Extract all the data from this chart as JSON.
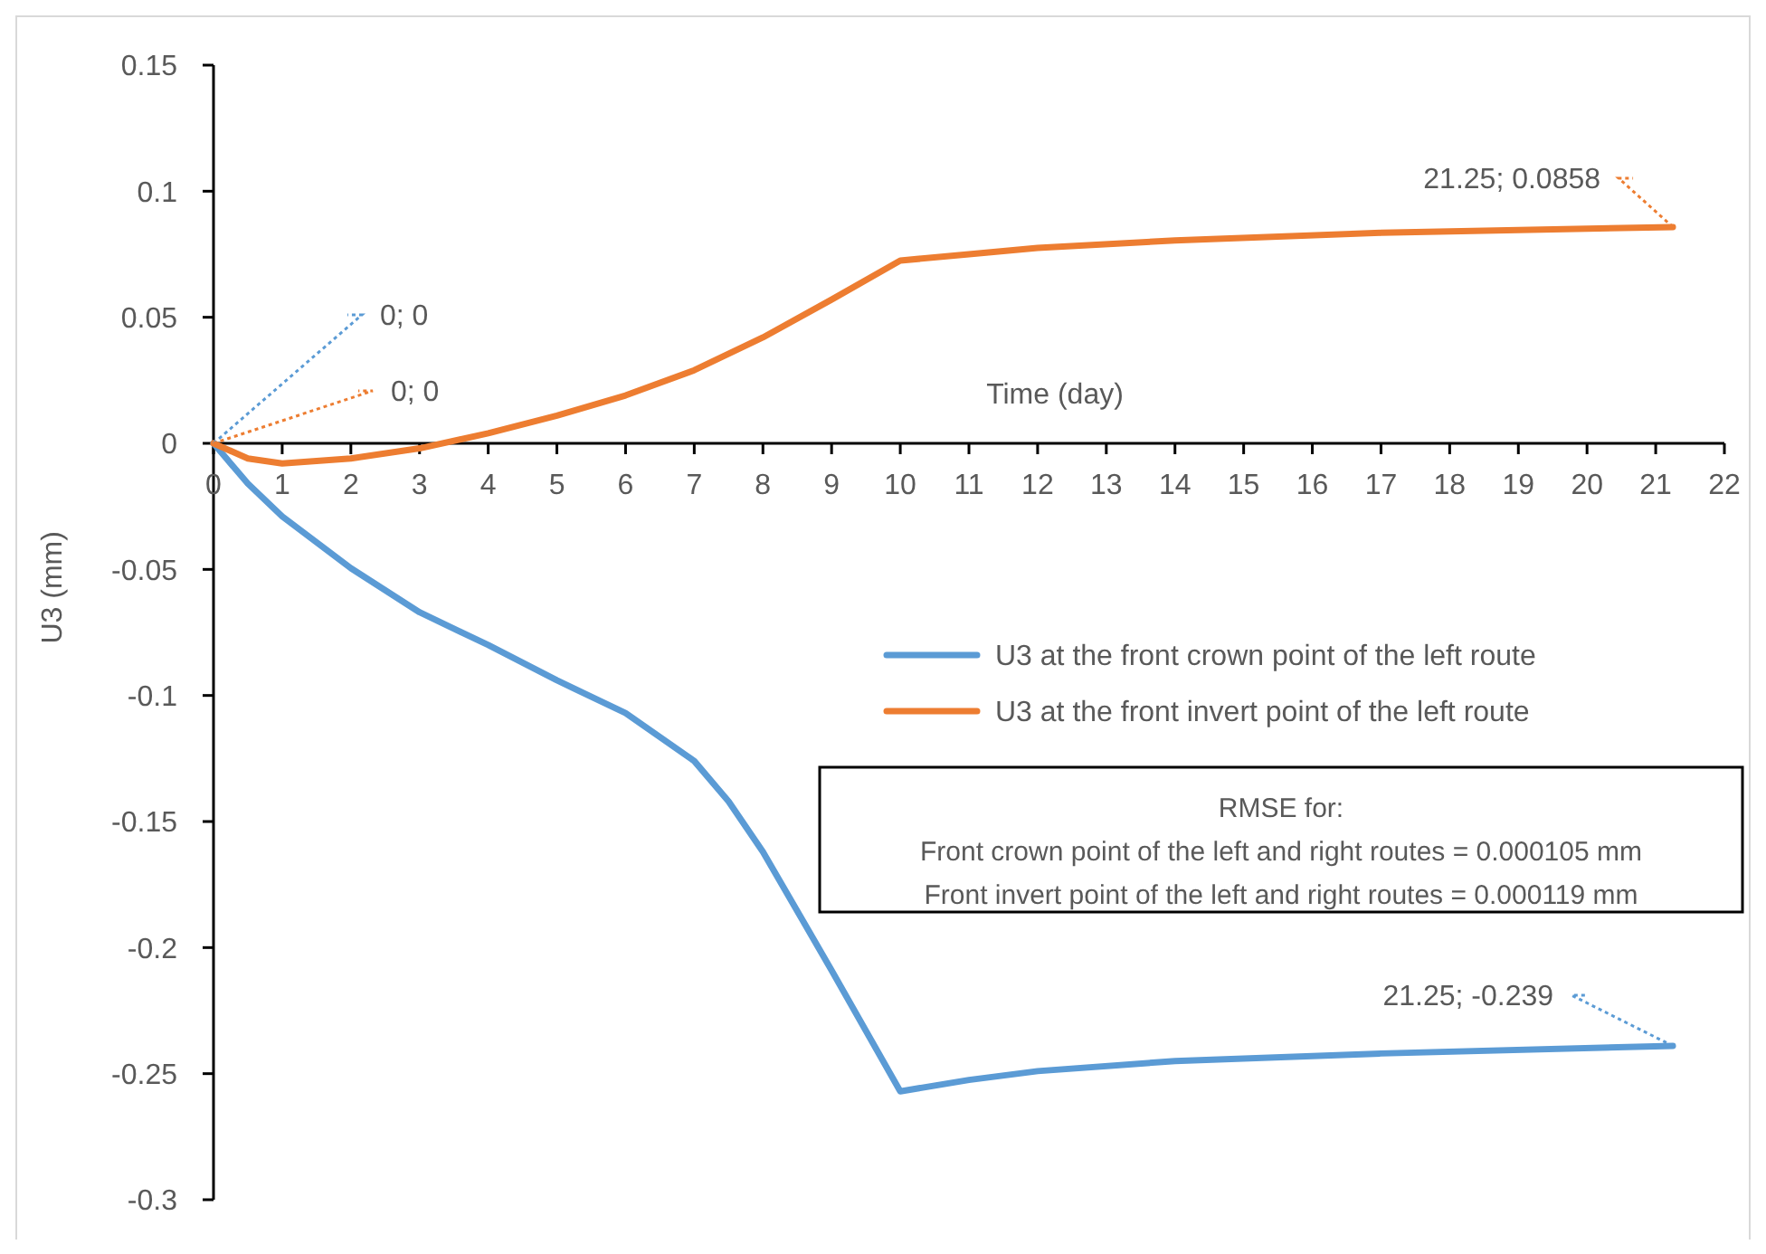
{
  "chart_data": {
    "type": "line",
    "xlabel": "Time (day)",
    "ylabel": "U3 (mm)",
    "xlim": [
      0,
      22
    ],
    "xticks": [
      0,
      1,
      2,
      3,
      4,
      5,
      6,
      7,
      8,
      9,
      10,
      11,
      12,
      13,
      14,
      15,
      16,
      17,
      18,
      19,
      20,
      21,
      22
    ],
    "ylim": [
      -0.3,
      0.15
    ],
    "yticks": [
      -0.3,
      -0.25,
      -0.2,
      -0.15,
      -0.1,
      -0.05,
      0,
      0.05,
      0.1,
      0.15
    ],
    "grid": false,
    "legend": "right",
    "series": [
      {
        "name": "U3 at the front crown point of the left route",
        "color": "#5b9bd5",
        "x": [
          0,
          0.5,
          1,
          2,
          3,
          4,
          5,
          6,
          7,
          7.5,
          8,
          9,
          10,
          11,
          12,
          14,
          17,
          21.25
        ],
        "values": [
          0,
          -0.016,
          -0.029,
          -0.0495,
          -0.067,
          -0.08,
          -0.094,
          -0.107,
          -0.126,
          -0.142,
          -0.162,
          -0.209,
          -0.257,
          -0.2525,
          -0.249,
          -0.245,
          -0.242,
          -0.239
        ],
        "value_labels": [
          "0; 0",
          null,
          null,
          null,
          null,
          null,
          null,
          null,
          null,
          null,
          null,
          null,
          null,
          null,
          null,
          null,
          null,
          "21.25; -0.239"
        ]
      },
      {
        "name": "U3 at the front invert point of the left route",
        "color": "#ed7d31",
        "x": [
          0,
          0.5,
          1,
          2,
          3,
          4,
          5,
          6,
          7,
          8,
          9,
          10,
          11,
          12,
          14,
          17,
          21.25
        ],
        "values": [
          0,
          -0.006,
          -0.008,
          -0.006,
          -0.002,
          0.004,
          0.011,
          0.019,
          0.029,
          0.042,
          0.057,
          0.0725,
          0.075,
          0.0775,
          0.0805,
          0.0835,
          0.0858
        ],
        "value_labels": [
          "0; 0",
          null,
          null,
          null,
          null,
          null,
          null,
          null,
          null,
          null,
          null,
          null,
          null,
          null,
          null,
          null,
          "21.25; 0.0858"
        ]
      }
    ],
    "annotations": [
      "RMSE for:",
      "Front crown point of the left and right routes = 0.000105 mm",
      "Front invert point of the left and right routes = 0.000119 mm"
    ]
  }
}
